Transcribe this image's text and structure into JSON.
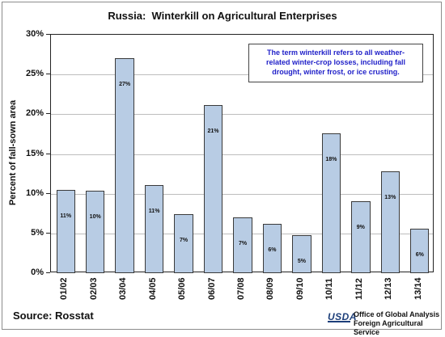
{
  "header": {
    "title": "Russia:  Winterkill on Agricultural Enterprises"
  },
  "annotation": {
    "lines": [
      "The term winterkill refers to all weather-",
      "related winter-crop losses, including fall",
      "drought, winter frost, or ice crusting."
    ]
  },
  "footer": {
    "source": "Source:  Rosstat",
    "logo_text": "USDA",
    "agency_line1": "Office of Global Analysis",
    "agency_line2": "Foreign Agricultural Service"
  },
  "colors": {
    "bar_fill": "#b8cce4",
    "annotation_text": "#1f1fc8"
  },
  "chart_data": {
    "type": "bar",
    "title": "Russia:  Winterkill on Agricultural Enterprises",
    "xlabel": "",
    "ylabel": "Percent of fall-sown area",
    "ylim": [
      0,
      30
    ],
    "yticks": [
      "0%",
      "5%",
      "10%",
      "15%",
      "20%",
      "25%",
      "30%"
    ],
    "ytick_values": [
      0,
      5,
      10,
      15,
      20,
      25,
      30
    ],
    "grid": true,
    "categories": [
      "01/02",
      "02/03",
      "03/04",
      "04/05",
      "05/06",
      "06/07",
      "07/08",
      "08/09",
      "09/10",
      "10/11",
      "11/12",
      "12/13",
      "13/14"
    ],
    "values": [
      10.5,
      10.4,
      27.1,
      11.1,
      7.4,
      21.2,
      7.0,
      6.2,
      4.8,
      17.6,
      9.1,
      12.8,
      5.6
    ],
    "data_labels": [
      "11%",
      "10%",
      "27%",
      "11%",
      "7%",
      "21%",
      "7%",
      "6%",
      "5%",
      "18%",
      "9%",
      "13%",
      "6%"
    ]
  }
}
